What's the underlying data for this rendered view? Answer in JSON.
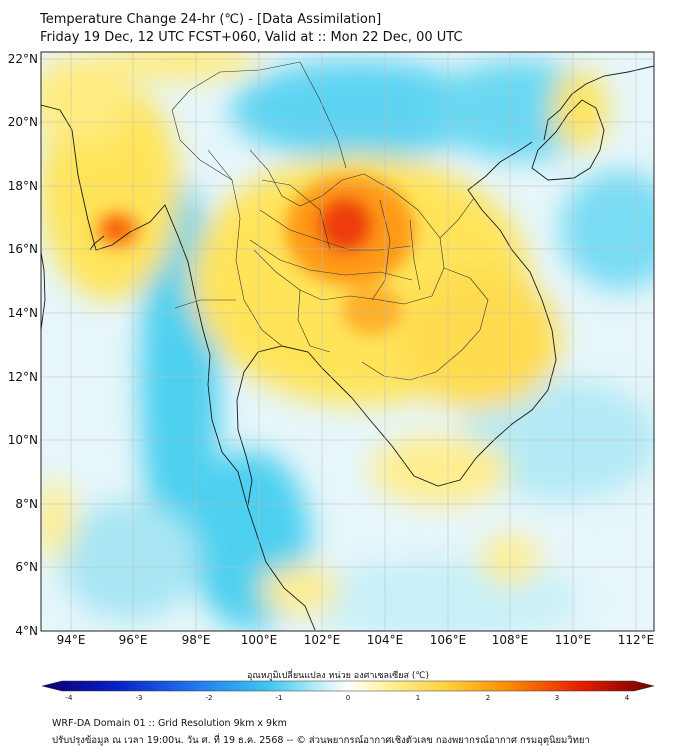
{
  "header": {
    "title_line1": "Temperature Change 24-hr (℃) - [Data Assimilation]",
    "title_line2": "Friday 19 Dec, 12 UTC FCST+060, Valid at :: Mon 22 Dec, 00 UTC"
  },
  "map": {
    "lon_range": [
      93,
      112.5
    ],
    "lat_range": [
      4,
      22.2
    ],
    "lon_ticks": [
      "94°E",
      "96°E",
      "98°E",
      "100°E",
      "102°E",
      "104°E",
      "106°E",
      "108°E",
      "110°E",
      "112°E"
    ],
    "lat_ticks": [
      "22°N",
      "20°N",
      "18°N",
      "16°N",
      "14°N",
      "12°N",
      "10°N",
      "8°N",
      "6°N",
      "4°N"
    ],
    "grid": true
  },
  "colorbar": {
    "title": "อุณหภูมิเปลี่ยนแปลง หน่วย องศาเซลเซียส (℃)",
    "tick_labels": [
      "-4",
      "-3",
      "-2",
      "-1",
      "0",
      "1",
      "2",
      "3",
      "4"
    ],
    "colors": [
      "#08006e",
      "#0a1ec8",
      "#1f78f0",
      "#3cc8f0",
      "#d8f4f8",
      "#ffffff",
      "#fff4a0",
      "#ffd23c",
      "#ff8c00",
      "#e61e00",
      "#6e0000"
    ]
  },
  "footer": {
    "line1": "WRF-DA Domain 01 :: Grid Resolution 9km x 9km",
    "line2": "ปรับปรุงข้อมูล ณ เวลา 19:00น. วัน ศ. ที่ 19 ธ.ค. 2568 -- © ส่วนพยากรณ์อากาศเชิงตัวเลข กองพยากรณ์อากาศ กรมอุตุนิยมวิทยา"
  }
}
